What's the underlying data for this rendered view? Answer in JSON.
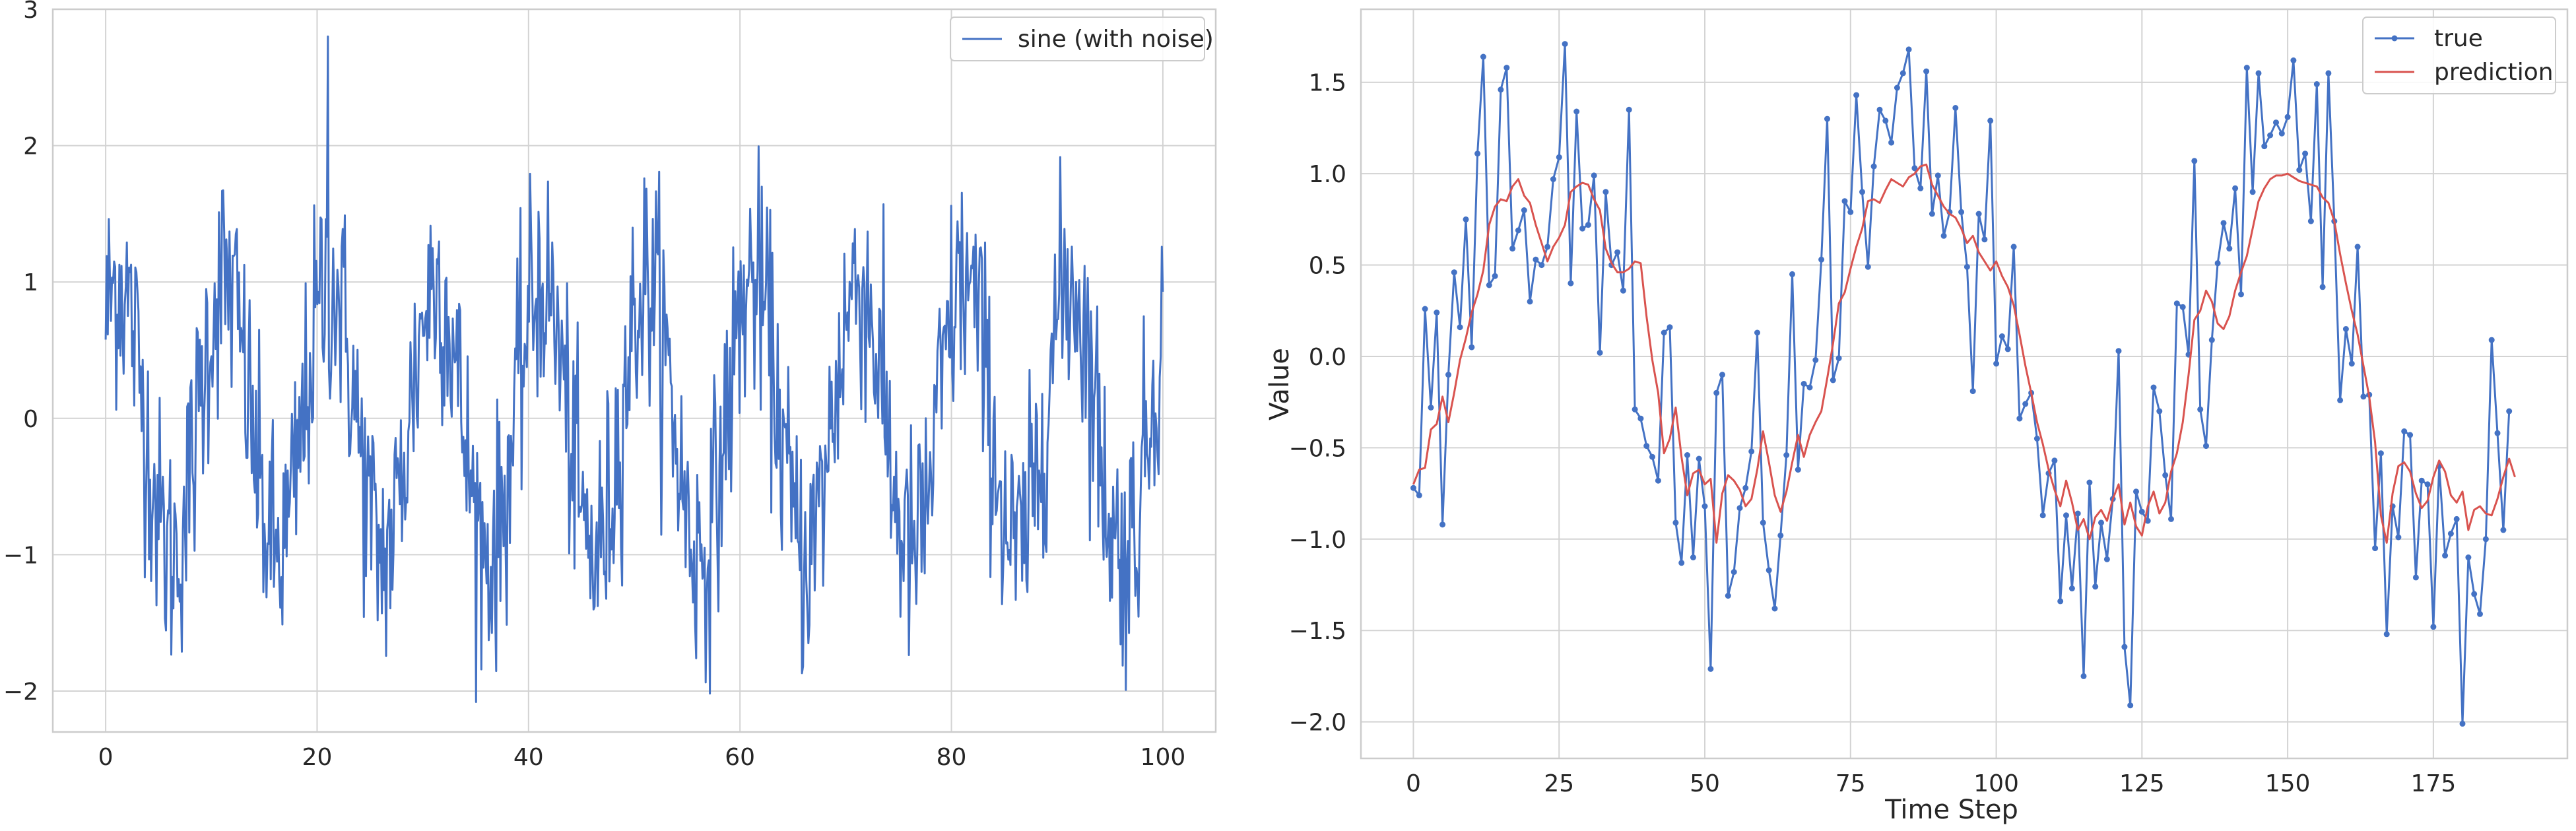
{
  "chart_data": [
    {
      "type": "line",
      "title": "",
      "xlabel": "",
      "ylabel": "",
      "xlim": [
        -5,
        105
      ],
      "ylim": [
        -2.3,
        3.0
      ],
      "xticks": [
        0,
        20,
        40,
        60,
        80,
        100
      ],
      "yticks": [
        -2,
        -1,
        0,
        1,
        2,
        3
      ],
      "grid": true,
      "legend_position": "top-right",
      "series": [
        {
          "name": "sine (with noise)",
          "color": "#4472c4",
          "description": "noisy sine wave, period ~10, amplitude ~1, noise ~0.45, 1000 samples over x 0 to 100",
          "x_start": 0,
          "x_end": 100,
          "n_points": 1000,
          "period": 10,
          "amplitude": 1.0,
          "noise_sd": 0.45
        }
      ]
    },
    {
      "type": "line",
      "title": "",
      "xlabel": "Time Step",
      "ylabel": "Value",
      "xlim": [
        -9,
        198
      ],
      "ylim": [
        -2.2,
        1.9
      ],
      "xticks": [
        0,
        25,
        50,
        75,
        100,
        125,
        150,
        175
      ],
      "yticks": [
        -2.0,
        -1.5,
        -1.0,
        -0.5,
        0.0,
        0.5,
        1.0,
        1.5
      ],
      "grid": true,
      "legend_position": "top-right",
      "series": [
        {
          "name": "true",
          "color": "#4472c4",
          "marker": "dot",
          "values": [
            -0.72,
            -0.76,
            0.26,
            -0.28,
            0.24,
            -0.92,
            -0.1,
            0.46,
            0.16,
            0.75,
            0.05,
            1.11,
            1.64,
            0.39,
            0.44,
            1.46,
            1.58,
            0.59,
            0.69,
            0.8,
            0.3,
            0.53,
            0.5,
            0.6,
            0.97,
            1.09,
            1.71,
            0.4,
            1.34,
            0.7,
            0.72,
            0.99,
            0.02,
            0.9,
            0.5,
            0.57,
            0.36,
            1.35,
            -0.29,
            -0.34,
            -0.49,
            -0.55,
            -0.68,
            0.13,
            0.16,
            -0.91,
            -1.13,
            -0.54,
            -1.1,
            -0.56,
            -0.82,
            -1.71,
            -0.2,
            -0.1,
            -1.31,
            -1.18,
            -0.83,
            -0.72,
            -0.52,
            0.13,
            -0.91,
            -1.17,
            -1.38,
            -0.98,
            -0.54,
            0.45,
            -0.62,
            -0.15,
            -0.17,
            -0.02,
            0.53,
            1.3,
            -0.13,
            -0.01,
            0.85,
            0.79,
            1.43,
            0.9,
            0.49,
            1.04,
            1.35,
            1.29,
            1.17,
            1.47,
            1.55,
            1.68,
            1.03,
            0.92,
            1.56,
            0.78,
            0.99,
            0.66,
            0.79,
            1.36,
            0.79,
            0.49,
            -0.19,
            0.78,
            0.64,
            1.29,
            -0.04,
            0.11,
            0.04,
            0.6,
            -0.34,
            -0.26,
            -0.2,
            -0.45,
            -0.87,
            -0.64,
            -0.57,
            -1.34,
            -0.87,
            -1.27,
            -0.86,
            -1.75,
            -0.69,
            -1.26,
            -0.91,
            -1.11,
            -0.78,
            0.03,
            -1.59,
            -1.91,
            -0.74,
            -0.85,
            -0.9,
            -0.17,
            -0.3,
            -0.65,
            -0.89,
            0.29,
            0.27,
            0.01,
            1.07,
            -0.29,
            -0.49,
            0.09,
            0.51,
            0.73,
            0.59,
            0.92,
            0.34,
            1.58,
            0.9,
            1.55,
            1.15,
            1.21,
            1.28,
            1.22,
            1.31,
            1.62,
            1.02,
            1.11,
            0.74,
            1.49,
            0.38,
            1.55,
            0.74,
            -0.24,
            0.15,
            -0.04,
            0.6,
            -0.22,
            -0.21,
            -1.05,
            -0.53,
            -1.52,
            -0.82,
            -0.99,
            -0.41,
            -0.43,
            -1.21,
            -0.68,
            -0.7,
            -1.48,
            -0.6,
            -1.09,
            -0.97,
            -0.89,
            -2.01,
            -1.1,
            -1.3,
            -1.41,
            -1.0,
            0.09,
            -0.42,
            -0.95,
            -0.3
          ]
        },
        {
          "name": "prediction",
          "color": "#d9534f",
          "values": [
            -0.7,
            -0.62,
            -0.61,
            -0.4,
            -0.37,
            -0.22,
            -0.36,
            -0.2,
            -0.02,
            0.1,
            0.24,
            0.34,
            0.47,
            0.72,
            0.82,
            0.86,
            0.85,
            0.93,
            0.97,
            0.88,
            0.84,
            0.72,
            0.62,
            0.52,
            0.6,
            0.65,
            0.72,
            0.9,
            0.93,
            0.95,
            0.94,
            0.86,
            0.8,
            0.59,
            0.51,
            0.46,
            0.46,
            0.48,
            0.52,
            0.51,
            0.22,
            -0.02,
            -0.2,
            -0.53,
            -0.45,
            -0.28,
            -0.55,
            -0.76,
            -0.64,
            -0.62,
            -0.7,
            -0.67,
            -1.02,
            -0.75,
            -0.65,
            -0.68,
            -0.73,
            -0.82,
            -0.78,
            -0.62,
            -0.41,
            -0.58,
            -0.76,
            -0.85,
            -0.74,
            -0.58,
            -0.43,
            -0.55,
            -0.43,
            -0.36,
            -0.3,
            -0.12,
            0.07,
            0.29,
            0.35,
            0.48,
            0.6,
            0.7,
            0.85,
            0.86,
            0.84,
            0.91,
            0.97,
            0.95,
            0.93,
            0.98,
            1.0,
            1.04,
            1.05,
            0.94,
            0.88,
            0.82,
            0.78,
            0.76,
            0.7,
            0.62,
            0.66,
            0.57,
            0.52,
            0.47,
            0.52,
            0.44,
            0.38,
            0.28,
            0.12,
            -0.05,
            -0.2,
            -0.36,
            -0.48,
            -0.62,
            -0.73,
            -0.82,
            -0.68,
            -0.8,
            -0.95,
            -0.89,
            -1.0,
            -0.88,
            -0.84,
            -0.9,
            -0.78,
            -0.7,
            -0.92,
            -0.8,
            -0.93,
            -0.98,
            -0.82,
            -0.74,
            -0.86,
            -0.8,
            -0.63,
            -0.53,
            -0.36,
            -0.1,
            0.2,
            0.25,
            0.36,
            0.3,
            0.18,
            0.15,
            0.22,
            0.36,
            0.46,
            0.55,
            0.7,
            0.85,
            0.92,
            0.97,
            0.99,
            0.99,
            1.0,
            0.98,
            0.96,
            0.95,
            0.94,
            0.93,
            0.87,
            0.84,
            0.74,
            0.56,
            0.4,
            0.25,
            0.12,
            -0.05,
            -0.22,
            -0.47,
            -0.87,
            -1.02,
            -0.75,
            -0.6,
            -0.58,
            -0.63,
            -0.75,
            -0.83,
            -0.79,
            -0.66,
            -0.57,
            -0.63,
            -0.76,
            -0.8,
            -0.74,
            -0.95,
            -0.84,
            -0.82,
            -0.86,
            -0.87,
            -0.78,
            -0.66,
            -0.56,
            -0.66
          ]
        }
      ]
    }
  ]
}
